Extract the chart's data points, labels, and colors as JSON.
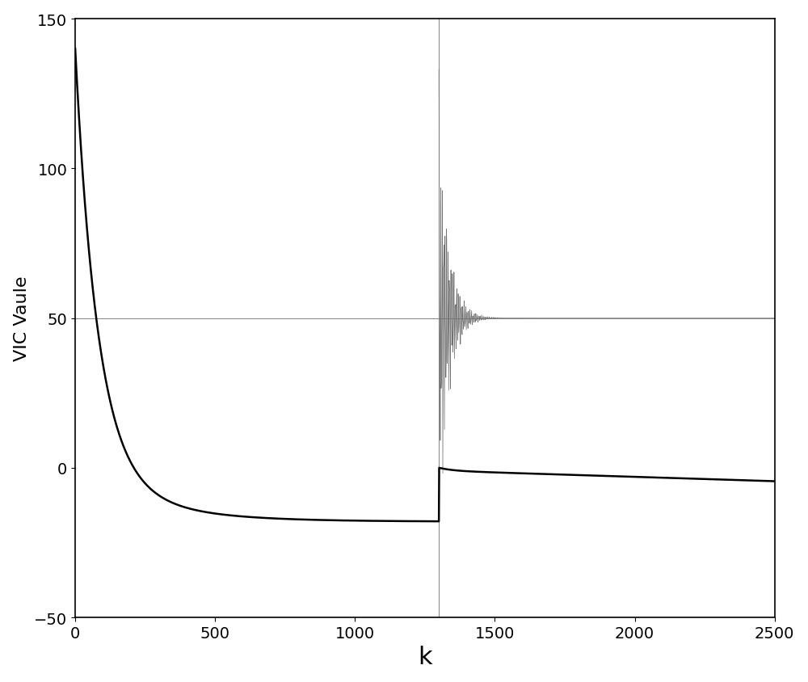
{
  "title": "",
  "xlabel": "k",
  "ylabel": "VIC Vaule",
  "xlim": [
    0,
    2500
  ],
  "ylim": [
    -50,
    150
  ],
  "yticks": [
    -50,
    0,
    50,
    100,
    150
  ],
  "xticks": [
    0,
    500,
    1000,
    1500,
    2000,
    2500
  ],
  "arrival_k": 1300,
  "threshold": 50,
  "black_curve_start": 140,
  "gray_spike_max": 133,
  "gray_settle": 50,
  "line_color_black": "#000000",
  "line_color_gray": "#707070",
  "background_color": "#ffffff",
  "linewidth_black": 1.8,
  "linewidth_gray": 0.5,
  "xlabel_fontsize": 22,
  "ylabel_fontsize": 16,
  "tick_fontsize": 14
}
